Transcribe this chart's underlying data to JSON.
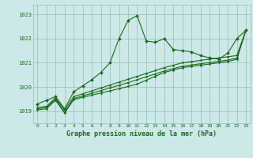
{
  "title": "Graphe pression niveau de la mer (hPa)",
  "bg_color": "#cce8e8",
  "grid_color": "#99bbbb",
  "line_color": "#1a6b1a",
  "x_labels": [
    "0",
    "1",
    "2",
    "3",
    "4",
    "5",
    "6",
    "7",
    "8",
    "9",
    "10",
    "11",
    "12",
    "13",
    "14",
    "15",
    "16",
    "17",
    "18",
    "19",
    "20",
    "21",
    "22",
    "23"
  ],
  "ylim": [
    1018.5,
    1023.4
  ],
  "yticks": [
    1019,
    1020,
    1021,
    1022,
    1023
  ],
  "line1": [
    1019.3,
    1019.45,
    1019.6,
    1019.1,
    1019.8,
    1020.05,
    1020.3,
    1020.6,
    1021.0,
    1022.0,
    1022.75,
    1022.95,
    1021.9,
    1021.85,
    1022.0,
    1021.55,
    1021.5,
    1021.45,
    1021.3,
    1021.2,
    1021.15,
    1021.4,
    1022.0,
    1022.35
  ],
  "line2": [
    1019.15,
    1019.2,
    1019.55,
    1019.05,
    1019.6,
    1019.72,
    1019.84,
    1019.96,
    1020.08,
    1020.2,
    1020.32,
    1020.44,
    1020.56,
    1020.68,
    1020.8,
    1020.9,
    1021.0,
    1021.05,
    1021.1,
    1021.15,
    1021.2,
    1021.25,
    1021.3,
    1022.35
  ],
  "line3": [
    1019.1,
    1019.15,
    1019.5,
    1018.95,
    1019.52,
    1019.63,
    1019.74,
    1019.85,
    1019.96,
    1020.07,
    1020.18,
    1020.3,
    1020.42,
    1020.54,
    1020.66,
    1020.76,
    1020.86,
    1020.91,
    1020.96,
    1021.01,
    1021.06,
    1021.11,
    1021.2,
    1022.35
  ],
  "line4": [
    1019.05,
    1019.1,
    1019.45,
    1018.92,
    1019.48,
    1019.57,
    1019.66,
    1019.75,
    1019.84,
    1019.93,
    1020.02,
    1020.12,
    1020.28,
    1020.44,
    1020.6,
    1020.7,
    1020.8,
    1020.85,
    1020.9,
    1020.95,
    1021.0,
    1021.05,
    1021.15,
    1022.35
  ]
}
